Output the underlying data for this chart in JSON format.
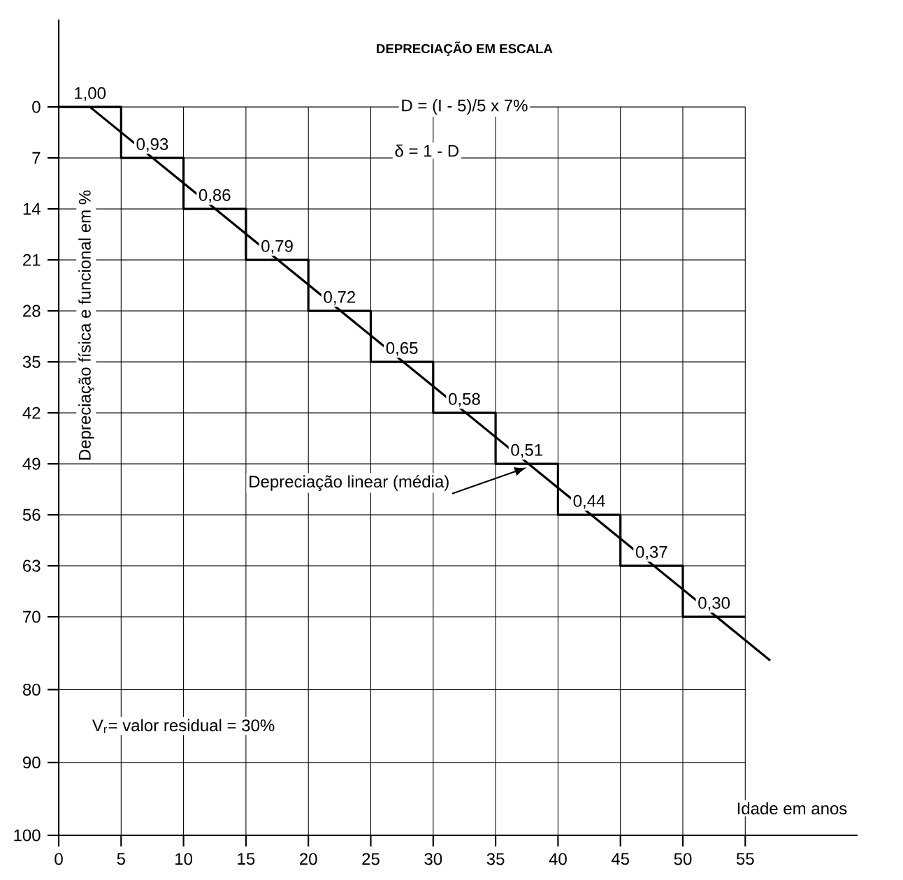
{
  "chart_data": {
    "type": "step",
    "title": "DEPRECIAÇÃO EM ESCALA",
    "xlabel": "Idade em anos",
    "ylabel": "Depreciação física e funcional em %",
    "annotations": [
      {
        "text": "Depreciação linear (média)",
        "x": 37.5,
        "y": 49.5
      },
      "D = (I - 5)/5 x 7%",
      "δ = 1 - D",
      "V$_{r}$= valor residual = 30%",
      {
        "text": "1,00",
        "x": 2.5,
        "y": 0
      },
      {
        "text": "0,93",
        "x": 7.5,
        "y": 7
      },
      {
        "text": "0,86",
        "x": 12.5,
        "y": 14
      },
      {
        "text": "0,79",
        "x": 17.5,
        "y": 21
      },
      {
        "text": "0,72",
        "x": 22.5,
        "y": 28
      },
      {
        "text": "0,65",
        "x": 27.5,
        "y": 35
      },
      {
        "text": "0,58",
        "x": 32.5,
        "y": 42
      },
      {
        "text": "0,51",
        "x": 37.5,
        "y": 49
      },
      {
        "text": "0,44",
        "x": 42.5,
        "y": 56
      },
      {
        "text": "0,37",
        "x": 47.5,
        "y": 63
      },
      {
        "text": "0,30",
        "x": 52.5,
        "y": 70
      }
    ],
    "series": [
      {
        "color": "#000000",
        "x": [
          0,
          5,
          10,
          15,
          20,
          25,
          30,
          35,
          40,
          45,
          50,
          55
        ],
        "values": [
          0,
          7,
          14,
          21,
          28,
          35,
          42,
          49,
          56,
          63,
          70,
          70
        ]
      },
      {
        "type": "line",
        "color": "#000000",
        "x": [
          2.5,
          57
        ],
        "values": [
          0,
          76
        ]
      }
    ],
    "xlim": [
      0,
      64
    ],
    "ylim": [
      100,
      -12
    ],
    "xticks": [
      0,
      5,
      10,
      15,
      20,
      25,
      30,
      35,
      40,
      45,
      50,
      55
    ],
    "yticks": [
      0,
      7,
      14,
      21,
      28,
      35,
      42,
      49,
      56,
      63,
      70,
      80,
      90,
      100
    ],
    "grid": true
  }
}
